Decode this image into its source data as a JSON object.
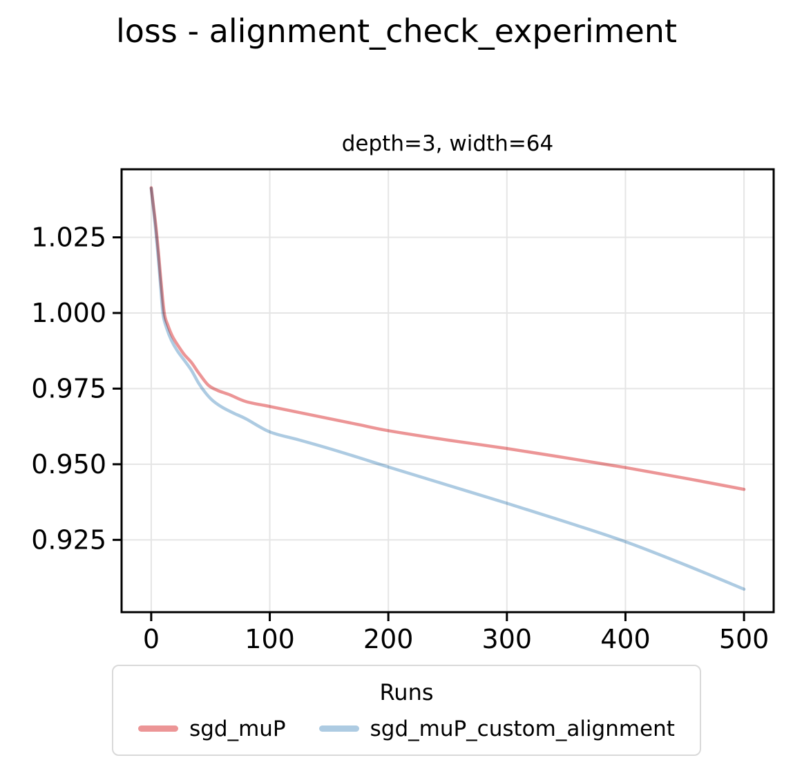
{
  "chart_data": {
    "type": "line",
    "title": "loss - alignment_check_experiment",
    "subtitle": "depth=3, width=64",
    "xlabel": "",
    "ylabel": "",
    "xlim": [
      -25,
      525
    ],
    "ylim": [
      0.9011,
      1.0475
    ],
    "grid": true,
    "grid_color": "#e5e5e5",
    "axis_color": "#000000",
    "xticks": {
      "values": [
        0,
        100,
        200,
        300,
        400,
        500
      ],
      "labels": [
        "0",
        "100",
        "200",
        "300",
        "400",
        "500"
      ]
    },
    "yticks": {
      "values": [
        0.925,
        0.95,
        0.975,
        1.0,
        1.025
      ],
      "labels": [
        "0.925",
        "0.950",
        "0.975",
        "1.000",
        "1.025"
      ]
    },
    "legend": {
      "title": "Runs",
      "position": "bottom"
    },
    "series": [
      {
        "name": "sgd_muP",
        "color": "#ec9596",
        "x": [
          0,
          2,
          4,
          6,
          8,
          11,
          14,
          18,
          23,
          28,
          34,
          40,
          48,
          56,
          66,
          80,
          100,
          125,
          150,
          175,
          200,
          250,
          300,
          350,
          400,
          450,
          500
        ],
        "y": [
          1.0414,
          1.035,
          1.0285,
          1.0205,
          1.0115,
          1.0,
          0.996,
          0.9922,
          0.989,
          0.9862,
          0.9836,
          0.9802,
          0.9762,
          0.9744,
          0.973,
          0.9707,
          0.9691,
          0.9671,
          0.9651,
          0.9631,
          0.9611,
          0.958,
          0.9552,
          0.9521,
          0.9489,
          0.9454,
          0.9417
        ]
      },
      {
        "name": "sgd_muP_custom_alignment",
        "color": "#adcbe2",
        "x": [
          0,
          2,
          4,
          6,
          8,
          10,
          13,
          17,
          22,
          28,
          34,
          40,
          46,
          52,
          60,
          70,
          80,
          100,
          125,
          150,
          175,
          200,
          250,
          300,
          350,
          400,
          450,
          500
        ],
        "y": [
          1.0412,
          1.034,
          1.0265,
          1.018,
          1.0085,
          0.9995,
          0.995,
          0.991,
          0.9875,
          0.9843,
          0.981,
          0.9768,
          0.9735,
          0.971,
          0.9688,
          0.9668,
          0.965,
          0.9607,
          0.958,
          0.9552,
          0.9522,
          0.9491,
          0.9431,
          0.9371,
          0.9309,
          0.9244,
          0.9168,
          0.9087
        ]
      }
    ]
  }
}
